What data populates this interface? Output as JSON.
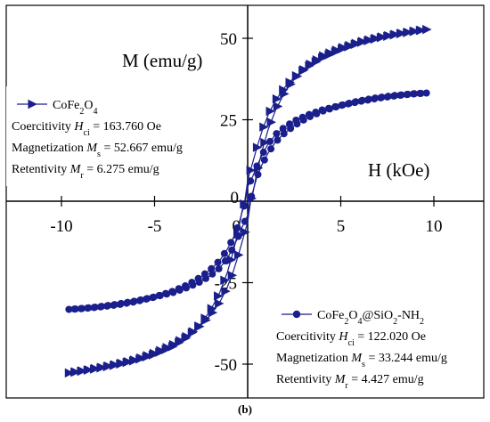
{
  "chart_data": {
    "type": "line",
    "panel_label": "(b)",
    "xlabel": "H (kOe)",
    "ylabel": "M (emu/g)",
    "xlim": [
      -12,
      12
    ],
    "ylim": [
      -60,
      60
    ],
    "x_ticks": [
      -10,
      -5,
      0,
      5,
      10
    ],
    "y_ticks": [
      -50,
      -25,
      0,
      25,
      50
    ],
    "x_tick_labels": [
      "-10",
      "-5",
      "0",
      "5",
      "10"
    ],
    "y_tick_labels": [
      "-50",
      "-25",
      "0",
      "25",
      "50"
    ],
    "grid": false,
    "colors": {
      "series": "#1a1f8c",
      "axis": "#000000"
    },
    "series": [
      {
        "name": "CoFe2O4",
        "marker": "triangle-right",
        "legend": {
          "name_parts": [
            "CoFe",
            "2",
            "O",
            "4"
          ],
          "lines": [
            {
              "prefix": "Coercitivity ",
              "sym": "H",
              "sub": "ci",
              "suffix": " = 163.760 Oe"
            },
            {
              "prefix": "Magnetization ",
              "sym": "M",
              "sub": "s",
              "suffix": " = 52.667 emu/g"
            },
            {
              "prefix": "Retentivity ",
              "sym": "M",
              "sub": "r",
              "suffix": " = 6.275 emu/g"
            }
          ]
        },
        "Ms": 52.667,
        "Hc": 0.16376,
        "Mr": 6.275,
        "x": [
          9.6,
          9.0,
          8.0,
          7.0,
          6.0,
          5.0,
          4.0,
          3.2,
          2.5,
          2.0,
          1.5,
          1.1,
          0.8,
          0.5,
          0.3,
          0.1,
          0.0,
          -0.16,
          -0.3,
          -0.5,
          -0.8,
          -1.1,
          -1.5,
          -2.0,
          -2.5,
          -3.2,
          -4.0,
          -5.0,
          -6.0,
          -7.0,
          -8.0,
          -9.0,
          -9.6
        ],
        "y": [
          52.7,
          52.2,
          51.2,
          50.0,
          48.6,
          46.6,
          44.0,
          41.2,
          38.0,
          35.0,
          31.0,
          26.5,
          22.0,
          16.5,
          12.5,
          8.5,
          6.3,
          0.0,
          -3.0,
          -9.0,
          -16.0,
          -22.0,
          -28.0,
          -33.5,
          -37.5,
          -41.5,
          -44.5,
          -47.0,
          -48.8,
          -50.2,
          -51.3,
          -52.2,
          -52.7
        ],
        "y_return": [
          52.7,
          52.0,
          50.8,
          49.4,
          47.7,
          45.5,
          42.5,
          39.5,
          36.0,
          32.5,
          28.0,
          22.0,
          16.0,
          9.0,
          3.0,
          -3.0,
          -6.3,
          -8.5,
          -12.5,
          -16.5,
          -22.0,
          -26.5,
          -31.0,
          -35.0,
          -38.0,
          -41.2,
          -44.0,
          -46.6,
          -48.6,
          -50.0,
          -51.2,
          -52.2,
          -52.7
        ]
      },
      {
        "name": "CoFe2O4@SiO2-NH2",
        "marker": "circle",
        "legend": {
          "name_parts": [
            "CoFe",
            "2",
            "O",
            "4",
            "@SiO",
            "2",
            "-NH",
            "2"
          ],
          "lines": [
            {
              "prefix": "Coercitivity ",
              "sym": "H",
              "sub": "ci",
              "suffix": " = 122.020 Oe"
            },
            {
              "prefix": "Magnetization ",
              "sym": "M",
              "sub": "s",
              "suffix": " = 33.244 emu/g"
            },
            {
              "prefix": "Retentivity ",
              "sym": "M",
              "sub": "r",
              "suffix": " = 4.427 emu/g"
            }
          ]
        },
        "Ms": 33.244,
        "Hc": 0.12202,
        "Mr": 4.427,
        "x": [
          9.6,
          9.0,
          8.0,
          7.0,
          6.0,
          5.0,
          4.0,
          3.2,
          2.5,
          2.0,
          1.5,
          1.1,
          0.8,
          0.5,
          0.3,
          0.1,
          0.0,
          -0.12,
          -0.3,
          -0.5,
          -0.8,
          -1.1,
          -1.5,
          -2.0,
          -2.5,
          -3.2,
          -4.0,
          -5.0,
          -6.0,
          -7.0,
          -8.0,
          -9.0,
          -9.6
        ],
        "y": [
          33.2,
          33.0,
          32.4,
          31.6,
          30.6,
          29.4,
          28.0,
          26.4,
          24.6,
          22.8,
          20.5,
          17.6,
          14.5,
          10.8,
          8.0,
          5.6,
          4.4,
          0.0,
          -3.4,
          -7.5,
          -11.6,
          -14.8,
          -18.2,
          -21.0,
          -23.2,
          -25.6,
          -27.6,
          -29.4,
          -30.8,
          -31.8,
          -32.5,
          -33.0,
          -33.2
        ],
        "y_return": [
          33.2,
          33.0,
          32.3,
          31.4,
          30.3,
          29.0,
          27.4,
          25.6,
          23.5,
          21.3,
          18.5,
          15.0,
          11.6,
          7.5,
          3.4,
          -1.0,
          -4.4,
          -5.6,
          -8.0,
          -10.8,
          -14.5,
          -17.6,
          -20.5,
          -22.8,
          -24.6,
          -26.4,
          -28.0,
          -29.4,
          -30.6,
          -31.6,
          -32.4,
          -33.0,
          -33.2
        ]
      }
    ]
  }
}
